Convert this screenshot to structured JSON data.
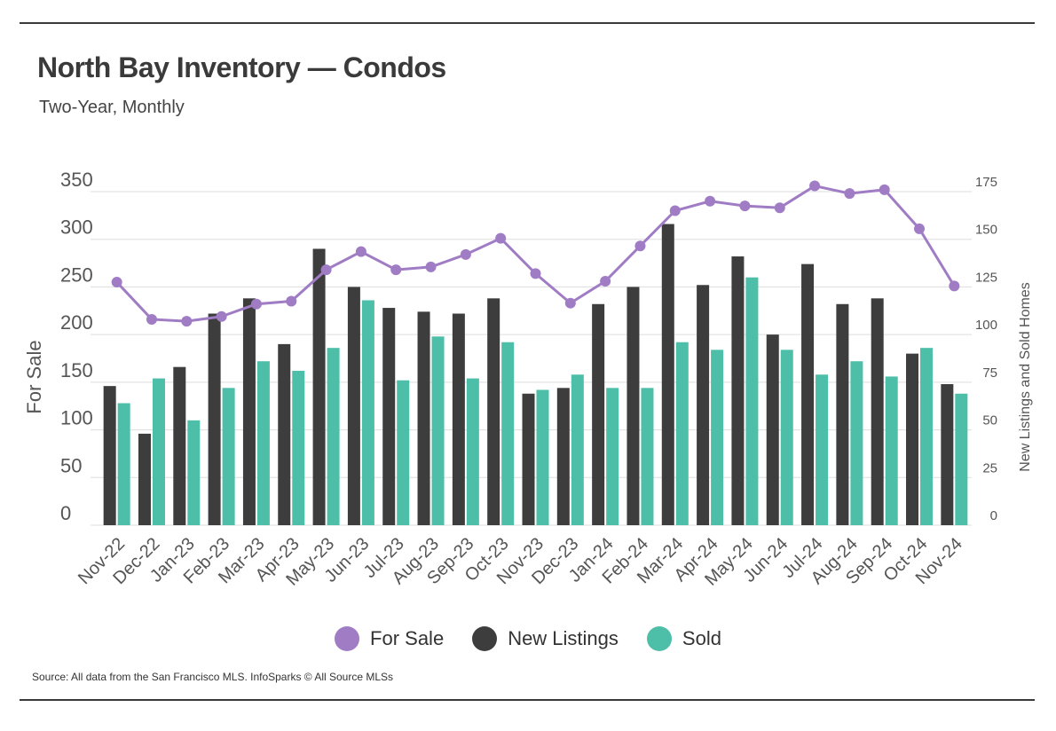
{
  "title": "North Bay Inventory — Condos",
  "subtitle": "Two-Year, Monthly",
  "source": "Source:  All data from the San Francisco MLS. InfoSparks © All Source MLSs",
  "colors": {
    "for_sale": "#a07cc5",
    "new_listings": "#3d3d3d",
    "sold": "#4dbfa9",
    "grid": "#dddddd",
    "axis_text": "#555555"
  },
  "chart_data": {
    "type": "bar",
    "categories": [
      "Nov-22",
      "Dec-22",
      "Jan-23",
      "Feb-23",
      "Mar-23",
      "Apr-23",
      "May-23",
      "Jun-23",
      "Jul-23",
      "Aug-23",
      "Sep-23",
      "Oct-23",
      "Nov-23",
      "Dec-23",
      "Jan-24",
      "Feb-24",
      "Mar-24",
      "Apr-24",
      "May-24",
      "Jun-24",
      "Jul-24",
      "Aug-24",
      "Sep-24",
      "Oct-24",
      "Nov-24"
    ],
    "series": [
      {
        "name": "New Listings",
        "type": "bar",
        "axis": "right",
        "values": [
          73,
          48,
          83,
          111,
          119,
          95,
          145,
          125,
          114,
          112,
          111,
          119,
          69,
          72,
          116,
          125,
          158,
          126,
          141,
          100,
          137,
          116,
          119,
          90,
          74
        ]
      },
      {
        "name": "Sold",
        "type": "bar",
        "axis": "right",
        "values": [
          64,
          77,
          55,
          72,
          86,
          81,
          93,
          118,
          76,
          99,
          77,
          96,
          71,
          79,
          72,
          72,
          96,
          92,
          130,
          92,
          79,
          86,
          78,
          93,
          69
        ]
      },
      {
        "name": "For Sale",
        "type": "line",
        "axis": "left",
        "values": [
          255,
          216,
          214,
          219,
          232,
          235,
          268,
          287,
          268,
          271,
          284,
          301,
          264,
          233,
          256,
          293,
          330,
          340,
          335,
          333,
          356,
          348,
          352,
          311,
          251
        ]
      }
    ],
    "ylabel": "For Sale",
    "y2label": "New Listings and Sold Homes",
    "ylim": [
      0,
      350
    ],
    "y2lim": [
      0,
      175
    ],
    "yticks": [
      0,
      50,
      100,
      150,
      200,
      250,
      300,
      350
    ],
    "y2ticks": [
      0,
      25,
      50,
      75,
      100,
      125,
      150,
      175
    ],
    "grid": true,
    "legend": [
      {
        "label": "For Sale",
        "color": "#a07cc5"
      },
      {
        "label": "New Listings",
        "color": "#3d3d3d"
      },
      {
        "label": "Sold",
        "color": "#4dbfa9"
      }
    ],
    "legend_position": "bottom"
  }
}
